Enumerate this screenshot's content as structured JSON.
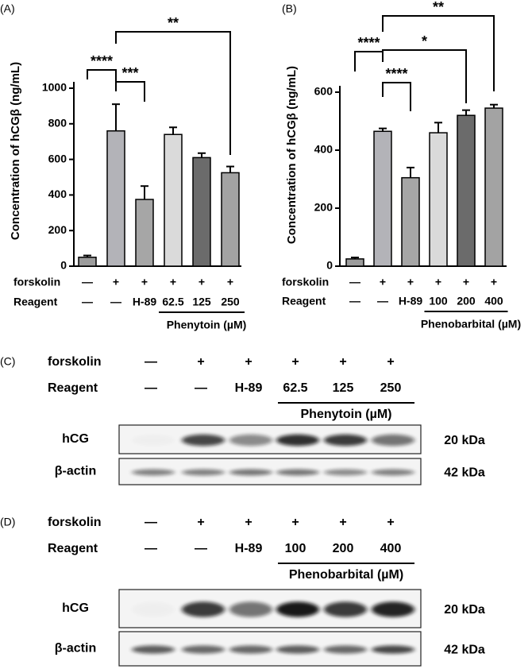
{
  "chart_data": [
    {
      "type": "bar",
      "panel": "(A)",
      "ylabel": "Concentration of hCGβ (ng/mL)",
      "ylim": [
        0,
        1000
      ],
      "yticks": [
        0,
        200,
        400,
        600,
        800,
        1000
      ],
      "values": [
        50,
        760,
        375,
        740,
        610,
        525
      ],
      "errors": [
        10,
        150,
        75,
        40,
        25,
        35
      ],
      "colors": [
        "#9c9c9c",
        "#b3b3b8",
        "#a6a6a6",
        "#dadada",
        "#6b6b6b",
        "#a3a3a3"
      ],
      "rows": [
        {
          "label": "forskolin",
          "values": [
            "—",
            "+",
            "+",
            "+",
            "+",
            "+"
          ]
        },
        {
          "label": "Reagent",
          "values": [
            "—",
            "—",
            "H-89",
            "62.5",
            "125",
            "250"
          ]
        }
      ],
      "group": {
        "label": "Phenytoin (µM)",
        "from": 3,
        "to": 5
      },
      "significance": [
        {
          "from": 0,
          "to": 1,
          "label": "****"
        },
        {
          "from": 1,
          "to": 2,
          "label": "***"
        },
        {
          "from": 1,
          "to": 5,
          "label": "**"
        }
      ]
    },
    {
      "type": "bar",
      "panel": "(B)",
      "ylabel": "Concentration of hCGβ (ng/mL)",
      "ylim": [
        0,
        600
      ],
      "yticks": [
        0,
        200,
        400,
        600
      ],
      "values": [
        25,
        465,
        305,
        460,
        520,
        545
      ],
      "errors": [
        5,
        10,
        35,
        35,
        18,
        12
      ],
      "colors": [
        "#9c9c9c",
        "#b3b3b8",
        "#a6a6a6",
        "#dadada",
        "#6b6b6b",
        "#a3a3a3"
      ],
      "rows": [
        {
          "label": "forskolin",
          "values": [
            "—",
            "+",
            "+",
            "+",
            "+",
            "+"
          ]
        },
        {
          "label": "Reagent",
          "values": [
            "—",
            "—",
            "H-89",
            "100",
            "200",
            "400"
          ]
        }
      ],
      "group": {
        "label": "Phenobarbital (µM)",
        "from": 3,
        "to": 5
      },
      "significance": [
        {
          "from": 0,
          "to": 1,
          "label": "****"
        },
        {
          "from": 1,
          "to": 2,
          "label": "****"
        },
        {
          "from": 1,
          "to": 4,
          "label": "*"
        },
        {
          "from": 1,
          "to": 5,
          "label": "**"
        }
      ]
    }
  ],
  "blots": [
    {
      "panel": "(C)",
      "rows": [
        {
          "label": "forskolin",
          "values": [
            "—",
            "+",
            "+",
            "+",
            "+",
            "+"
          ]
        },
        {
          "label": "Reagent",
          "values": [
            "—",
            "—",
            "H-89",
            "62.5",
            "125",
            "250"
          ]
        }
      ],
      "group": {
        "label": "Phenytoin (µM)",
        "from": 3,
        "to": 5
      },
      "bands": [
        {
          "label": "hCG",
          "size": "20 kDa"
        },
        {
          "label": "β-actin",
          "size": "42 kDa"
        }
      ]
    },
    {
      "panel": "(D)",
      "rows": [
        {
          "label": "forskolin",
          "values": [
            "—",
            "+",
            "+",
            "+",
            "+",
            "+"
          ]
        },
        {
          "label": "Reagent",
          "values": [
            "—",
            "—",
            "H-89",
            "100",
            "200",
            "400"
          ]
        }
      ],
      "group": {
        "label": "Phenobarbital (µM)",
        "from": 3,
        "to": 5
      },
      "bands": [
        {
          "label": "hCG",
          "size": "20 kDa"
        },
        {
          "label": "β-actin",
          "size": "42 kDa"
        }
      ]
    }
  ]
}
